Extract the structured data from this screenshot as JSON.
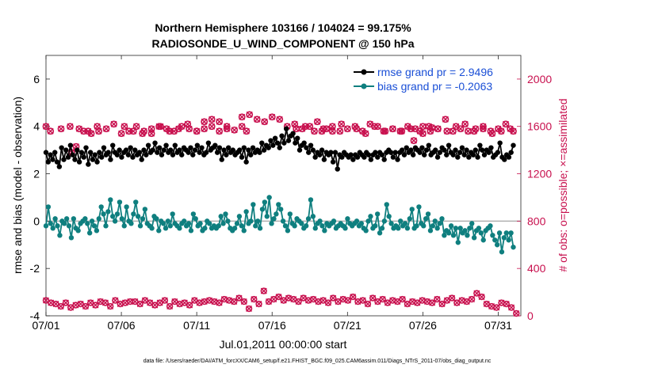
{
  "chart_data": {
    "type": "line",
    "title_line1": "Northern Hemisphere 103166 / 104024 = 99.175%",
    "title_line2": "RADIOSONDE_U_WIND_COMPONENT @ 150 hPa",
    "xlabel": "Jul.01,2011 00:00:00 start",
    "ylabel": "rmse and bias (model - observation)",
    "y2label": "# of obs: o=possible; ×=assimilated",
    "footer": "data file: /Users/raeder/DAI/ATM_forcXX/CAM6_setup/f.e21.FHIST_BGC.f09_025.CAM6assim.011/Diags_NTrS_2011-07/obs_diag_output.nc",
    "xlim": [
      0,
      31.5
    ],
    "ylim": [
      -4,
      7
    ],
    "y2lim": [
      0,
      2200
    ],
    "x_ticks": [
      0,
      5,
      10,
      15,
      20,
      25,
      30
    ],
    "x_tick_labels": [
      "07/01",
      "07/06",
      "07/11",
      "07/16",
      "07/21",
      "07/26",
      "07/31"
    ],
    "y_ticks": [
      -4,
      -2,
      0,
      2,
      4,
      6
    ],
    "y_tick_labels": [
      "-4",
      "-2",
      "0",
      "2",
      "4",
      "6"
    ],
    "y2_ticks": [
      0,
      400,
      800,
      1200,
      1600,
      2000
    ],
    "y2_tick_labels": [
      "0",
      "400",
      "800",
      "1200",
      "1600",
      "2000"
    ],
    "colors": {
      "rmse": "#000000",
      "bias": "#0f7f7f",
      "obs": "#c8104e",
      "legend_text": "#1a4fd6",
      "zero_line": "#b0b0b0"
    },
    "series": [
      {
        "name": "rmse grand pr = 2.9496",
        "key": "rmse",
        "values": [
          2.9,
          2.5,
          2.8,
          2.6,
          2.9,
          2.5,
          2.3,
          3.1,
          2.6,
          3.0,
          2.7,
          3.2,
          2.8,
          2.6,
          3.0,
          2.5,
          2.9,
          2.7,
          3.1,
          2.4,
          2.9,
          2.6,
          2.8,
          2.5,
          2.9,
          2.7,
          3.1,
          2.8,
          2.9,
          2.6,
          3.2,
          2.9,
          2.8,
          3.0,
          2.7,
          2.9,
          3.0,
          2.8,
          3.1,
          2.7,
          3.0,
          2.8,
          2.9,
          2.6,
          3.0,
          2.8,
          3.2,
          2.9,
          3.0,
          3.3,
          2.9,
          3.1,
          2.8,
          3.0,
          3.2,
          2.9,
          3.0,
          2.8,
          3.2,
          2.9,
          3.0,
          2.8,
          3.1,
          3.0,
          2.9,
          3.1,
          2.8,
          3.0,
          3.2,
          2.9,
          3.1,
          2.8,
          2.9,
          3.3,
          3.0,
          3.1,
          3.2,
          2.9,
          3.1,
          2.6,
          3.0,
          2.8,
          3.1,
          2.9,
          3.0,
          2.8,
          2.9,
          3.0,
          2.7,
          3.1,
          2.5,
          3.0,
          2.8,
          3.1,
          2.9,
          3.0,
          2.9,
          3.3,
          3.0,
          3.2,
          3.1,
          3.4,
          3.2,
          3.5,
          3.3,
          3.1,
          3.6,
          3.3,
          3.9,
          3.4,
          3.6,
          3.7,
          3.3,
          3.5,
          3.0,
          3.2,
          3.3,
          3.1,
          2.9,
          3.2,
          3.0,
          2.7,
          2.9,
          2.8,
          3.0,
          2.6,
          2.9,
          2.8,
          2.9,
          2.5,
          2.9,
          2.2,
          2.8,
          2.7,
          2.9,
          2.8,
          2.7,
          2.8,
          2.6,
          2.8,
          2.7,
          2.9,
          2.8,
          2.7,
          2.9,
          2.8,
          2.6,
          2.8,
          2.9,
          2.7,
          2.9,
          2.8,
          2.6,
          2.9,
          3.0,
          2.9,
          2.7,
          2.9,
          2.6,
          2.9,
          3.0,
          2.8,
          3.1,
          2.9,
          3.0,
          2.8,
          3.1,
          3.0,
          2.9,
          3.1,
          2.8,
          3.0,
          3.2,
          2.8,
          2.9,
          3.0,
          2.7,
          2.9,
          3.1,
          3.0,
          2.8,
          3.2,
          2.9,
          2.8,
          3.0,
          2.7,
          2.9,
          3.1,
          2.8,
          3.0,
          2.7,
          2.9,
          2.8,
          3.0,
          2.7,
          3.2,
          3.0,
          2.8,
          3.0,
          2.9,
          3.1,
          2.7,
          2.8,
          2.9,
          3.3,
          2.7,
          2.6,
          2.8,
          2.7,
          2.9,
          3.2
        ]
      },
      {
        "name": "bias grand pr = -0.2063",
        "key": "bias",
        "values": [
          -0.2,
          0.6,
          -0.1,
          -0.3,
          0.1,
          -0.2,
          -0.6,
          0.0,
          -0.1,
          0.1,
          -0.2,
          -0.7,
          0.1,
          -0.3,
          -0.4,
          -0.1,
          0.0,
          0.1,
          -0.1,
          -0.5,
          0.0,
          -0.2,
          -0.4,
          0.1,
          0.6,
          0.3,
          -0.2,
          0.4,
          0.9,
          0.2,
          0.0,
          0.3,
          0.8,
          0.1,
          -0.2,
          0.6,
          0.0,
          -0.1,
          0.3,
          0.8,
          0.2,
          -0.2,
          0.1,
          0.5,
          -0.1,
          -0.2,
          -0.3,
          0.2,
          0.1,
          -0.4,
          0.0,
          -0.1,
          -0.3,
          0.0,
          -0.2,
          0.3,
          -0.1,
          -0.2,
          -0.3,
          -0.1,
          0.0,
          -0.2,
          -0.1,
          -0.4,
          0.3,
          0.1,
          -0.2,
          -0.1,
          -0.4,
          -0.3,
          0.0,
          -0.1,
          -0.3,
          -0.2,
          -0.3,
          -0.2,
          0.2,
          -0.1,
          0.3,
          0.0,
          -0.3,
          -0.4,
          -0.3,
          -0.1,
          0.2,
          -0.2,
          -0.4,
          0.4,
          -0.1,
          0.0,
          0.7,
          -0.2,
          0.0,
          -0.3,
          0.5,
          0.8,
          0.2,
          1.0,
          -0.1,
          0.1,
          0.3,
          0.7,
          0.5,
          0.0,
          -0.2,
          -0.4,
          0.3,
          -0.1,
          -0.2,
          0.1,
          0.0,
          -0.1,
          -0.3,
          -0.2,
          0.1,
          0.9,
          0.2,
          -0.3,
          -0.1,
          0.0,
          -0.2,
          -0.4,
          -0.1,
          -0.2,
          -0.1,
          0.0,
          -0.3,
          -0.2,
          -0.1,
          -0.2,
          -0.3,
          0.1,
          -0.1,
          -0.2,
          -0.1,
          0.0,
          -0.2,
          -0.1,
          -0.3,
          -0.4,
          0.0,
          0.2,
          -0.3,
          -0.2,
          0.3,
          -0.5,
          -0.3,
          0.0,
          0.7,
          0.2,
          -0.1,
          -0.3,
          -0.2,
          -0.3,
          0.0,
          -0.2,
          -0.1,
          -0.3,
          0.1,
          0.5,
          -0.3,
          -0.2,
          0.6,
          -0.1,
          -0.2,
          0.1,
          0.3,
          -0.4,
          -0.2,
          0.0,
          -0.3,
          -0.1,
          0.1,
          -0.6,
          -0.4,
          -0.5,
          -0.2,
          -0.6,
          -0.3,
          -0.9,
          -0.3,
          -0.5,
          -0.4,
          -0.6,
          -0.3,
          -0.1,
          -0.7,
          -0.4,
          -0.3,
          -0.5,
          -0.8,
          -0.4,
          -0.3,
          -0.2,
          -0.6,
          -0.8,
          -1.0,
          -0.5,
          -1.3,
          -0.7,
          -0.5,
          -0.8,
          -0.5,
          -1.1
        ]
      },
      {
        "name": "possible",
        "key": "obs_possible",
        "values": [
          1600,
          1560,
          1580,
          1380,
          1430,
          1560,
          1540,
          1560,
          1580,
          1620,
          1540,
          1560,
          1600,
          1560,
          1540,
          1600,
          1580,
          1560,
          1600,
          1580,
          1560,
          1580,
          1600,
          1560,
          1580,
          1570,
          1600,
          1560,
          1640,
          1660,
          1640,
          1600,
          1680,
          1700,
          1660,
          1640,
          1680,
          1660,
          1600,
          1620,
          1580,
          1600,
          1640,
          1560,
          1580,
          1600,
          1560,
          1580,
          1600,
          1560,
          1620,
          1600,
          1560,
          1580,
          1560,
          1600,
          1580,
          1540,
          1560,
          1580,
          1660,
          1560,
          1580,
          1560,
          1580,
          1600,
          1560,
          1580,
          1620,
          1560,
          1580,
          1540,
          1600,
          1560,
          1580,
          1560,
          1580,
          1560,
          1600,
          1580,
          1560,
          1600,
          1620,
          1560,
          1580,
          1540,
          1560,
          1580,
          1600,
          1560,
          1540,
          1580,
          1600,
          1560,
          1580,
          1620,
          1560,
          1600,
          1580,
          1560,
          1600,
          1580,
          1600,
          1560,
          1580,
          1560,
          1620,
          1480,
          1600,
          1590
        ],
        "x_positions": [
          0.0,
          0.3,
          1.0,
          1.7,
          2.0,
          2.5,
          3.0,
          3.5,
          4.0,
          4.5,
          5.0,
          5.5,
          6.0,
          6.5,
          7.0,
          7.5,
          8.0,
          8.5,
          9.0,
          9.5,
          10.0,
          10.5,
          11.0,
          11.5,
          12.0,
          12.5,
          13.0,
          13.3,
          10.5,
          11.0,
          11.5,
          12.0,
          13.0,
          13.5,
          14.0,
          14.5,
          15.0,
          15.5,
          16.0,
          16.5,
          17.0,
          17.5,
          18.0,
          18.3,
          18.6,
          19.0,
          19.5,
          20.0,
          20.5,
          21.0,
          21.5,
          22.0,
          22.5,
          23.0,
          23.5,
          24.0,
          24.5,
          25.0,
          25.5,
          26.0,
          26.5,
          27.0,
          27.5,
          28.0,
          28.5,
          29.0,
          29.5,
          30.0,
          30.5,
          31.0,
          20.6,
          21.2,
          21.8,
          22.4,
          23.0,
          23.6,
          24.2,
          24.8,
          25.4,
          26.0,
          26.6,
          27.2,
          27.8,
          28.4,
          29.0,
          29.6,
          30.2,
          30.8,
          5.2,
          5.8,
          6.4,
          7.0,
          7.6,
          8.2,
          8.8,
          9.4,
          10.0,
          1.6,
          2.2,
          2.8,
          3.4,
          16.6,
          17.2,
          17.8,
          18.4,
          19.0,
          19.6,
          24.4,
          25.0,
          25.6
        ]
      },
      {
        "name": "assimilated",
        "key": "obs_assimilated",
        "values": [
          130,
          110,
          100,
          80,
          110,
          70,
          90,
          100,
          80,
          110,
          90,
          120,
          110,
          80,
          130,
          100,
          110,
          120,
          120,
          100,
          130,
          110,
          90,
          110,
          130,
          80,
          120,
          100,
          110,
          90,
          130,
          110,
          120,
          130,
          120,
          110,
          140,
          130,
          120,
          150,
          120,
          60,
          140,
          100,
          210,
          120,
          140,
          160,
          130,
          150,
          140,
          120,
          150,
          130,
          140,
          120,
          130,
          110,
          150,
          120,
          140,
          130,
          160,
          120,
          130,
          100,
          150,
          120,
          140,
          110,
          130,
          120,
          140,
          100,
          120,
          110,
          130,
          120,
          110,
          140,
          100,
          130,
          150,
          110,
          130,
          120,
          140,
          190,
          160,
          100,
          80,
          70,
          110,
          100,
          70,
          20
        ]
      }
    ]
  }
}
